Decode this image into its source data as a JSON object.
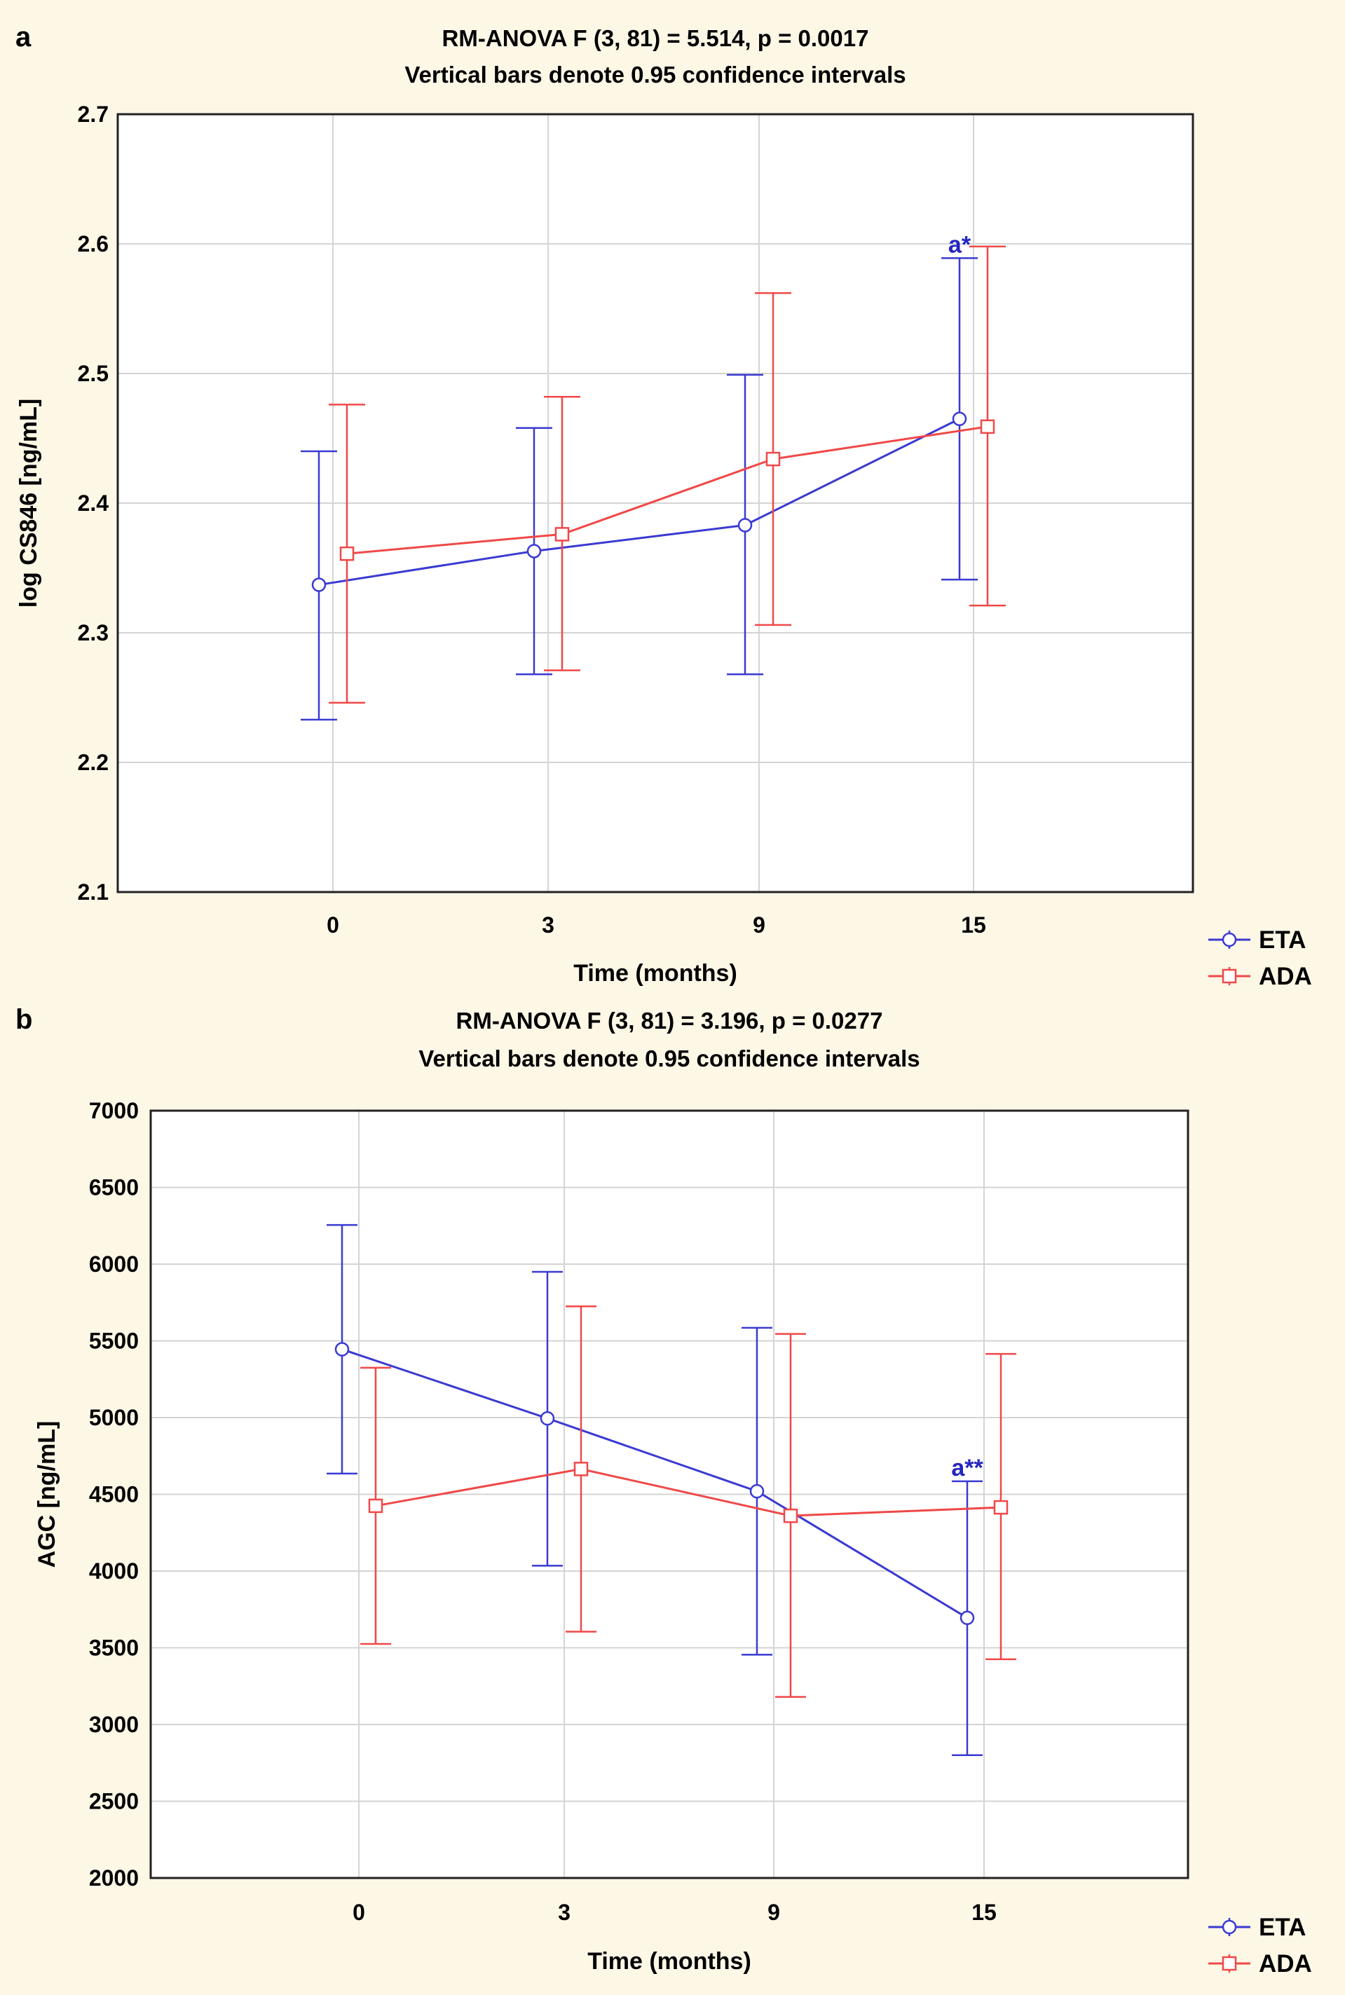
{
  "chart_data": [
    {
      "panel": "a",
      "type": "line",
      "title": "RM-ANOVA F (3, 81) = 5.514, p = 0.0017",
      "subtitle": "Vertical bars denote 0.95 confidence intervals",
      "xlabel": "Time (months)",
      "ylabel": "log CS846 [ng/mL]",
      "categories": [
        "0",
        "3",
        "9",
        "15"
      ],
      "ylim": [
        2.1,
        2.7
      ],
      "yticks": [
        2.1,
        2.2,
        2.3,
        2.4,
        2.5,
        2.6,
        2.7
      ],
      "ytick_labels": [
        "2.1",
        "2.2",
        "2.3",
        "2.4",
        "2.5",
        "2.6",
        "2.7"
      ],
      "grid": true,
      "legend_position": "bottom-right outside",
      "series": [
        {
          "name": "ETA",
          "color": "#3a3ad2",
          "marker": "circle",
          "values": [
            2.337,
            2.363,
            2.383,
            2.465
          ],
          "ci_low": [
            2.233,
            2.268,
            2.268,
            2.341
          ],
          "ci_high": [
            2.44,
            2.458,
            2.499,
            2.589
          ]
        },
        {
          "name": "ADA",
          "color": "#f04848",
          "marker": "square",
          "values": [
            2.361,
            2.376,
            2.434,
            2.459
          ],
          "ci_low": [
            2.246,
            2.271,
            2.306,
            2.321
          ],
          "ci_high": [
            2.476,
            2.482,
            2.562,
            2.598
          ]
        }
      ],
      "annotations": [
        {
          "text": "a*",
          "series": "ETA",
          "category": "15",
          "color": "#2525c0"
        }
      ]
    },
    {
      "panel": "b",
      "type": "line",
      "title": "RM-ANOVA F (3, 81) = 3.196, p = 0.0277",
      "subtitle": "Vertical bars denote 0.95 confidence intervals",
      "xlabel": "Time (months)",
      "ylabel": "AGC [ng/mL]",
      "categories": [
        "0",
        "3",
        "9",
        "15"
      ],
      "ylim": [
        2000,
        7000
      ],
      "yticks": [
        2000,
        2500,
        3000,
        3500,
        4000,
        4500,
        5000,
        5500,
        6000,
        6500,
        7000
      ],
      "ytick_labels": [
        "2000",
        "2500",
        "3000",
        "3500",
        "4000",
        "4500",
        "5000",
        "5500",
        "6000",
        "6500",
        "7000"
      ],
      "grid": true,
      "legend_position": "bottom-right outside",
      "series": [
        {
          "name": "ETA",
          "color": "#3a3ad2",
          "marker": "circle",
          "values": [
            5445,
            4995,
            4520,
            3695
          ],
          "ci_low": [
            4635,
            4035,
            3455,
            2800
          ],
          "ci_high": [
            6255,
            5950,
            5585,
            4585
          ]
        },
        {
          "name": "ADA",
          "color": "#f04848",
          "marker": "square",
          "values": [
            4425,
            4665,
            4360,
            4415
          ],
          "ci_low": [
            3525,
            3605,
            3180,
            3425
          ],
          "ci_high": [
            5325,
            5725,
            5545,
            5415
          ]
        }
      ],
      "annotations": [
        {
          "text": "a**",
          "series": "ETA",
          "category": "15",
          "color": "#2525c0"
        }
      ]
    }
  ]
}
